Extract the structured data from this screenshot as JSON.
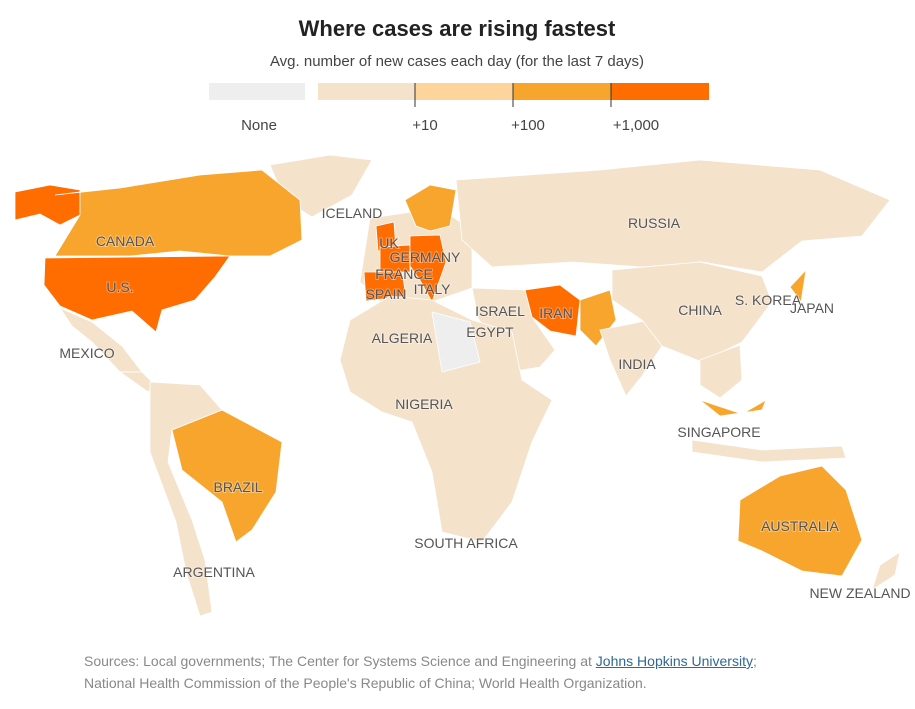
{
  "header": {
    "title": "Where cases are rising fastest",
    "subtitle": "Avg. number of new cases each day (for the last 7 days)"
  },
  "legend": {
    "items": [
      {
        "label": "None",
        "color": "#eeeeee"
      },
      {
        "color": "#f4e2cb"
      },
      {
        "color": "#fdd59c"
      },
      {
        "color": "#f8a52d"
      },
      {
        "color": "#ff6c00"
      }
    ],
    "ticks": [
      "+10",
      "+100",
      "+1,000"
    ]
  },
  "labels": [
    "ICELAND",
    "RUSSIA",
    "CANADA",
    "UK",
    "GERMANY",
    "FRANCE",
    "ITALY",
    "SPAIN",
    "U.S.",
    "ISRAEL",
    "IRAN",
    "EGYPT",
    "CHINA",
    "S. KOREA",
    "JAPAN",
    "ALGERIA",
    "MEXICO",
    "INDIA",
    "NIGERIA",
    "SINGAPORE",
    "BRAZIL",
    "AUSTRALIA",
    "SOUTH AFRICA",
    "ARGENTINA",
    "NEW ZEALAND"
  ],
  "sources": {
    "prefix": "Sources: Local governments; The Center for Systems Science and Engineering at ",
    "link": "Johns Hopkins University",
    "suffix": ";",
    "line2": "National Health Commission of the People's Republic of China; World Health Organization."
  }
}
